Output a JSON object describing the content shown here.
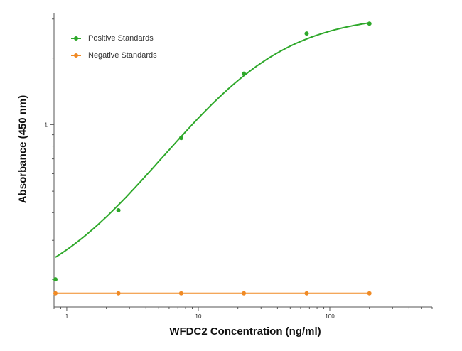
{
  "chart_data": {
    "type": "scatter",
    "xlabel": "WFDC2 Concentration (ng/ml)",
    "ylabel": "Absorbance (450 nm)",
    "x_scale": "log",
    "y_scale": "log",
    "xlim": [
      0.8,
      600
    ],
    "ylim": [
      0.15,
      3.2
    ],
    "x_ticks": [
      {
        "value": 1,
        "label": "1"
      },
      {
        "value": 10,
        "label": "10"
      },
      {
        "value": 100,
        "label": "100"
      }
    ],
    "y_ticks": [
      {
        "value": 1,
        "label": "1"
      }
    ],
    "grid": false,
    "legend_position": "top-left",
    "series": [
      {
        "name": "Positive Standards",
        "color": "#2ea82a",
        "fit": "sigmoid",
        "points": [
          {
            "x": 0.82,
            "y": 0.2
          },
          {
            "x": 2.47,
            "y": 0.41
          },
          {
            "x": 7.41,
            "y": 0.87
          },
          {
            "x": 22.2,
            "y": 1.7
          },
          {
            "x": 66.7,
            "y": 2.58
          },
          {
            "x": 200,
            "y": 2.86
          }
        ]
      },
      {
        "name": "Negative Standards",
        "color": "#f08a24",
        "fit": "line",
        "points": [
          {
            "x": 0.82,
            "y": 0.173
          },
          {
            "x": 2.47,
            "y": 0.173
          },
          {
            "x": 7.41,
            "y": 0.173
          },
          {
            "x": 22.2,
            "y": 0.173
          },
          {
            "x": 66.7,
            "y": 0.173
          },
          {
            "x": 200,
            "y": 0.173
          }
        ]
      }
    ]
  }
}
